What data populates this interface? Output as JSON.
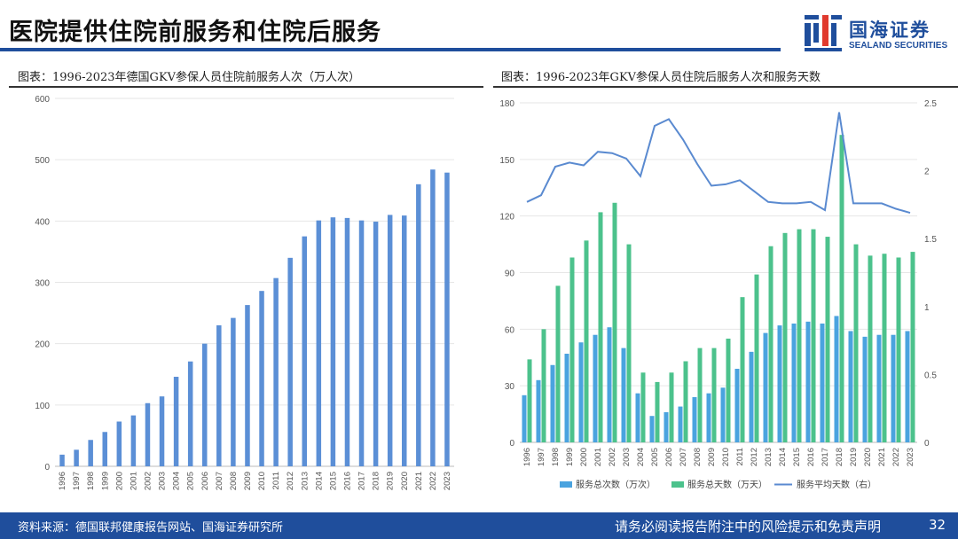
{
  "header": {
    "title": "医院提供住院前服务和住院后服务",
    "logo_cn": "国海证券",
    "logo_en": "SEALAND SECURITIES"
  },
  "colors": {
    "primary": "#1f4e9c",
    "bar_blue": "#5b8fd6",
    "bar_cyan": "#4aa3df",
    "bar_green": "#4cc28c",
    "line_blue": "#5a8ad0"
  },
  "left_chart": {
    "caption": "图表：1996-2023年德国GKV参保人员住院前服务人次（万人次）"
  },
  "right_chart": {
    "caption": "图表：1996-2023年GKV参保人员住院后服务人次和服务天数"
  },
  "chart_data": [
    {
      "type": "bar",
      "title": "1996-2023年德国GKV参保人员住院前服务人次（万人次）",
      "categories": [
        "1996",
        "1997",
        "1998",
        "1999",
        "2000",
        "2001",
        "2002",
        "2003",
        "2004",
        "2005",
        "2006",
        "2007",
        "2008",
        "2009",
        "2010",
        "2011",
        "2012",
        "2013",
        "2014",
        "2015",
        "2016",
        "2017",
        "2018",
        "2019",
        "2020",
        "2021",
        "2022",
        "2023"
      ],
      "values": [
        19,
        27,
        43,
        56,
        73,
        83,
        103,
        114,
        146,
        171,
        200,
        230,
        242,
        263,
        286,
        307,
        340,
        375,
        401,
        406,
        405,
        401,
        399,
        410,
        409,
        460,
        484,
        479
      ],
      "ylim": [
        0,
        600
      ],
      "yticks": [
        0,
        100,
        200,
        300,
        400,
        500,
        600
      ],
      "xlabel": "",
      "ylabel": ""
    },
    {
      "type": "bar",
      "title": "1996-2023年GKV参保人员住院后服务人次和服务天数",
      "categories": [
        "1996",
        "1997",
        "1998",
        "1999",
        "2000",
        "2001",
        "2002",
        "2003",
        "2004",
        "2005",
        "2006",
        "2007",
        "2008",
        "2009",
        "2010",
        "2011",
        "2012",
        "2013",
        "2014",
        "2015",
        "2016",
        "2017",
        "2018",
        "2019",
        "2020",
        "2021",
        "2022",
        "2023"
      ],
      "series": [
        {
          "name": "服务总次数（万次）",
          "kind": "bar",
          "axis": "left",
          "values": [
            25,
            33,
            41,
            47,
            53,
            57,
            61,
            50,
            26,
            14,
            16,
            19,
            24,
            26,
            29,
            39,
            48,
            58,
            62,
            63,
            64,
            63,
            67,
            59,
            56,
            57,
            57,
            59
          ]
        },
        {
          "name": "服务总天数（万天）",
          "kind": "bar",
          "axis": "left",
          "values": [
            44,
            60,
            83,
            98,
            107,
            122,
            127,
            105,
            37,
            32,
            37,
            43,
            50,
            50,
            55,
            77,
            89,
            104,
            111,
            113,
            113,
            109,
            163,
            105,
            99,
            100,
            98,
            101
          ]
        },
        {
          "name": "服务平均天数（右）",
          "kind": "line",
          "axis": "right",
          "values": [
            1.77,
            1.82,
            2.03,
            2.06,
            2.04,
            2.14,
            2.13,
            2.09,
            1.96,
            2.33,
            2.38,
            2.23,
            2.05,
            1.89,
            1.9,
            1.93,
            1.85,
            1.77,
            1.76,
            1.76,
            1.77,
            1.71,
            2.43,
            1.76,
            1.76,
            1.76,
            1.72,
            1.69
          ]
        }
      ],
      "ylim_left": [
        0,
        180
      ],
      "yticks_left": [
        0,
        30,
        60,
        90,
        120,
        150,
        180
      ],
      "ylim_right": [
        0,
        2.5
      ],
      "yticks_right": [
        "0",
        "0.5",
        "1",
        "1.5",
        "2",
        "2.5"
      ],
      "legend": [
        "服务总次数（万次）",
        "服务总天数（万天）",
        "服务平均天数（右）"
      ],
      "legend_position": "bottom"
    }
  ],
  "footer": {
    "source": "资料来源：德国联邦健康报告网站、国海证券研究所",
    "disclaimer": "请务必阅读报告附注中的风险提示和免责声明",
    "page": "32"
  }
}
